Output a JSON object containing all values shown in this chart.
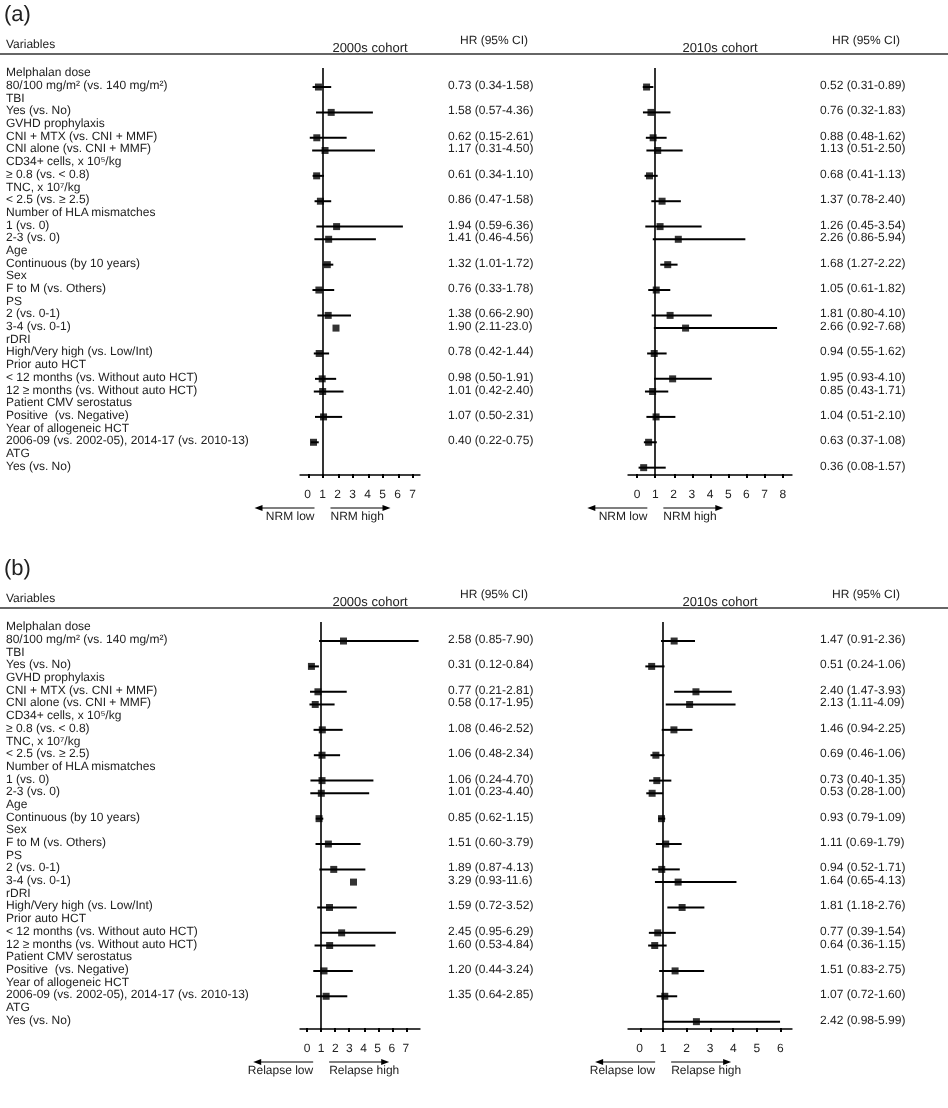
{
  "chart_data": [
    {
      "type": "scatter",
      "orientation": "horizontal",
      "title": "2000s cohort",
      "ylabel": "Variables",
      "annotations": [
        "(a)",
        "HR (95% CI)",
        "NRM low",
        "NRM high"
      ],
      "color": "#000000",
      "marker": "square",
      "xlim": [
        -0.5,
        7.5
      ],
      "xticks": [
        0,
        1,
        2,
        3,
        4,
        5,
        6,
        7
      ],
      "ref_lines": [
        {
          "axis": "x",
          "value": 1
        }
      ],
      "categories": [
        "Melphalan dose",
        "80/100 mg/m² (vs. 140 mg/m²)",
        "TBI",
        "Yes (vs. No)",
        "GVHD prophylaxis",
        "CNI + MTX (vs. CNI + MMF)",
        "CNI alone (vs. CNI + MMF)",
        "CD34+ cells, x 10⁵/kg",
        "≥ 0.8 (vs. < 0.8)",
        "TNC, x 10⁷/kg",
        "< 2.5 (vs. ≥ 2.5)",
        "Number of HLA mismatches",
        "1 (vs. 0)",
        "2-3 (vs. 0)",
        "Age",
        "Continuous (by 10 years)",
        "Sex",
        "F to M (vs. Others)",
        "PS",
        "2 (vs. 0-1)",
        "3-4 (vs. 0-1)",
        "rDRI",
        "High/Very high (vs. Low/Int)",
        "Prior auto HCT",
        "< 12 months (vs. Without auto HCT)",
        "12 ≥ months (vs. Without auto HCT)",
        "Patient CMV serostatus",
        "Positive  (vs. Negative)",
        "Year of allogeneic HCT",
        "2006-09 (vs. 2002-05), 2014-17 (vs. 2010-13)",
        "ATG",
        "Yes (vs. No)"
      ],
      "values": [
        null,
        0.73,
        null,
        1.58,
        null,
        0.62,
        1.17,
        null,
        0.61,
        null,
        0.86,
        null,
        1.94,
        1.41,
        null,
        1.32,
        null,
        0.76,
        null,
        1.38,
        1.9,
        null,
        0.78,
        null,
        0.98,
        1.01,
        null,
        1.07,
        null,
        0.4,
        null,
        null
      ],
      "errors": [
        null,
        [
          0.34,
          1.58
        ],
        null,
        [
          0.57,
          4.36
        ],
        null,
        [
          0.15,
          2.61
        ],
        [
          0.31,
          4.5
        ],
        null,
        [
          0.34,
          1.1
        ],
        null,
        [
          0.47,
          1.58
        ],
        null,
        [
          0.59,
          6.36
        ],
        [
          0.46,
          4.56
        ],
        null,
        [
          1.01,
          1.72
        ],
        null,
        [
          0.33,
          1.78
        ],
        null,
        [
          0.66,
          2.9
        ],
        null,
        null,
        [
          0.42,
          1.44
        ],
        null,
        [
          0.5,
          1.91
        ],
        [
          0.42,
          2.4
        ],
        null,
        [
          0.5,
          2.31
        ],
        null,
        [
          0.22,
          0.75
        ],
        null,
        null
      ],
      "value_labels": [
        null,
        "0.73 (0.34-1.58)",
        null,
        "1.58 (0.57-4.36)",
        null,
        "0.62 (0.15-2.61)",
        "1.17 (0.31-4.50)",
        null,
        "0.61 (0.34-1.10)",
        null,
        "0.86 (0.47-1.58)",
        null,
        "1.94 (0.59-6.36)",
        "1.41 (0.46-4.56)",
        null,
        "1.32 (1.01-1.72)",
        null,
        "0.76 (0.33-1.78)",
        null,
        "1.38 (0.66-2.90)",
        "1.90 (2.11-23.0)",
        null,
        "0.78 (0.42-1.44)",
        null,
        "0.98 (0.50-1.91)",
        "1.01 (0.42-2.40)",
        null,
        "1.07 (0.50-2.31)",
        null,
        "0.40 (0.22-0.75)",
        null,
        null
      ]
    },
    {
      "type": "scatter",
      "orientation": "horizontal",
      "title": "2010s cohort",
      "annotations": [
        "HR (95% CI)",
        "NRM low",
        "NRM high"
      ],
      "color": "#000000",
      "marker": "square",
      "xlim": [
        -0.5,
        8.5
      ],
      "xticks": [
        0,
        1,
        2,
        3,
        4,
        5,
        6,
        7,
        8
      ],
      "ref_lines": [
        {
          "axis": "x",
          "value": 1
        }
      ],
      "tick_labels": "x",
      "categories": [
        null,
        null,
        null,
        null,
        null,
        null,
        null,
        null,
        null,
        null,
        null,
        null,
        null,
        null,
        null,
        null,
        null,
        null,
        null,
        null,
        null,
        null,
        null,
        null,
        null,
        null,
        null,
        null,
        null,
        null,
        null,
        null
      ],
      "values": [
        null,
        0.52,
        null,
        0.76,
        null,
        0.88,
        1.13,
        null,
        0.68,
        null,
        1.37,
        null,
        1.26,
        2.26,
        null,
        1.68,
        null,
        1.05,
        null,
        1.81,
        2.66,
        null,
        0.94,
        null,
        1.95,
        0.85,
        null,
        1.04,
        null,
        0.63,
        null,
        0.36
      ],
      "errors": [
        null,
        [
          0.31,
          0.89
        ],
        null,
        [
          0.32,
          1.83
        ],
        null,
        [
          0.48,
          1.62
        ],
        [
          0.51,
          2.5
        ],
        null,
        [
          0.41,
          1.13
        ],
        null,
        [
          0.78,
          2.4
        ],
        null,
        [
          0.45,
          3.54
        ],
        [
          0.86,
          5.94
        ],
        null,
        [
          1.27,
          2.22
        ],
        null,
        [
          0.61,
          1.82
        ],
        null,
        [
          0.8,
          4.1
        ],
        [
          0.92,
          7.68
        ],
        null,
        [
          0.55,
          1.62
        ],
        null,
        [
          0.93,
          4.1
        ],
        [
          0.43,
          1.71
        ],
        null,
        [
          0.51,
          2.1
        ],
        null,
        [
          0.37,
          1.08
        ],
        null,
        [
          0.08,
          1.57
        ]
      ],
      "value_labels": [
        null,
        "0.52 (0.31-0.89)",
        null,
        "0.76 (0.32-1.83)",
        null,
        "0.88 (0.48-1.62)",
        "1.13 (0.51-2.50)",
        null,
        "0.68 (0.41-1.13)",
        null,
        "1.37 (0.78-2.40)",
        null,
        "1.26 (0.45-3.54)",
        "2.26 (0.86-5.94)",
        null,
        "1.68 (1.27-2.22)",
        null,
        "1.05 (0.61-1.82)",
        null,
        "1.81 (0.80-4.10)",
        "2.66 (0.92-7.68)",
        null,
        "0.94 (0.55-1.62)",
        null,
        "1.95 (0.93-4.10)",
        "0.85 (0.43-1.71)",
        null,
        "1.04 (0.51-2.10)",
        null,
        "0.63 (0.37-1.08)",
        null,
        "0.36 (0.08-1.57)"
      ]
    },
    {
      "type": "scatter",
      "orientation": "horizontal",
      "title": "2000s cohort",
      "ylabel": "Variables",
      "annotations": [
        "(b)",
        "HR (95% CI)",
        "Relapse low",
        "Relapse high"
      ],
      "color": "#000000",
      "marker": "square",
      "xlim": [
        -0.5,
        8
      ],
      "xticks": [
        0,
        1,
        2,
        3,
        4,
        5,
        6,
        7
      ],
      "ref_lines": [
        {
          "axis": "x",
          "value": 1
        }
      ],
      "categories": [
        "Melphalan dose",
        "80/100 mg/m² (vs. 140 mg/m²)",
        "TBI",
        "Yes (vs. No)",
        "GVHD prophylaxis",
        "CNI + MTX (vs. CNI + MMF)",
        "CNI alone (vs. CNI + MMF)",
        "CD34+ cells, x 10⁵/kg",
        "≥ 0.8 (vs. < 0.8)",
        "TNC, x 10⁷/kg",
        "< 2.5 (vs. ≥ 2.5)",
        "Number of HLA mismatches",
        "1 (vs. 0)",
        "2-3 (vs. 0)",
        "Age",
        "Continuous (by 10 years)",
        "Sex",
        "F to M (vs. Others)",
        "PS",
        "2 (vs. 0-1)",
        "3-4 (vs. 0-1)",
        "rDRI",
        "High/Very high (vs. Low/Int)",
        "Prior auto HCT",
        "< 12 months (vs. Without auto HCT)",
        "12 ≥ months (vs. Without auto HCT)",
        "Patient CMV serostatus",
        "Positive  (vs. Negative)",
        "Year of allogeneic HCT",
        "2006-09 (vs. 2002-05), 2014-17 (vs. 2010-13)",
        "ATG",
        "Yes (vs. No)"
      ],
      "values": [
        null,
        2.58,
        null,
        0.31,
        null,
        0.77,
        0.58,
        null,
        1.08,
        null,
        1.06,
        null,
        1.06,
        1.01,
        null,
        0.85,
        null,
        1.51,
        null,
        1.89,
        3.29,
        null,
        1.59,
        null,
        2.45,
        1.6,
        null,
        1.2,
        null,
        1.35,
        null,
        null
      ],
      "errors": [
        null,
        [
          0.85,
          7.9
        ],
        null,
        [
          0.12,
          0.84
        ],
        null,
        [
          0.21,
          2.81
        ],
        [
          0.17,
          1.95
        ],
        null,
        [
          0.46,
          2.52
        ],
        null,
        [
          0.48,
          2.34
        ],
        null,
        [
          0.24,
          4.7
        ],
        [
          0.23,
          4.4
        ],
        null,
        [
          0.62,
          1.15
        ],
        null,
        [
          0.6,
          3.79
        ],
        null,
        [
          0.87,
          4.13
        ],
        null,
        null,
        [
          0.72,
          3.52
        ],
        null,
        [
          0.95,
          6.29
        ],
        [
          0.53,
          4.84
        ],
        null,
        [
          0.44,
          3.24
        ],
        null,
        [
          0.64,
          2.85
        ],
        null,
        null
      ],
      "value_labels": [
        null,
        "2.58 (0.85-7.90)",
        null,
        "0.31 (0.12-0.84)",
        null,
        "0.77 (0.21-2.81)",
        "0.58 (0.17-1.95)",
        null,
        "1.08 (0.46-2.52)",
        null,
        "1.06 (0.48-2.34)",
        null,
        "1.06 (0.24-4.70)",
        "1.01 (0.23-4.40)",
        null,
        "0.85 (0.62-1.15)",
        null,
        "1.51 (0.60-3.79)",
        null,
        "1.89 (0.87-4.13)",
        "3.29 (0.93-11.6)",
        null,
        "1.59 (0.72-3.52)",
        null,
        "2.45 (0.95-6.29)",
        "1.60 (0.53-4.84)",
        null,
        "1.20 (0.44-3.24)",
        null,
        "1.35 (0.64-2.85)",
        null,
        null
      ]
    },
    {
      "type": "scatter",
      "orientation": "horizontal",
      "title": "2010s cohort",
      "annotations": [
        "HR (95% CI)",
        "Relapse low",
        "Relapse high"
      ],
      "color": "#000000",
      "marker": "square",
      "xlim": [
        -0.5,
        6.5
      ],
      "xticks": [
        0,
        1,
        2,
        3,
        4,
        5,
        6
      ],
      "ref_lines": [
        {
          "axis": "x",
          "value": 1
        }
      ],
      "tick_labels": "x",
      "categories": [
        null,
        null,
        null,
        null,
        null,
        null,
        null,
        null,
        null,
        null,
        null,
        null,
        null,
        null,
        null,
        null,
        null,
        null,
        null,
        null,
        null,
        null,
        null,
        null,
        null,
        null,
        null,
        null,
        null,
        null,
        null,
        null
      ],
      "values": [
        null,
        1.47,
        null,
        0.51,
        null,
        2.4,
        2.13,
        null,
        1.46,
        null,
        0.69,
        null,
        0.73,
        0.53,
        null,
        0.93,
        null,
        1.11,
        null,
        0.94,
        1.64,
        null,
        1.81,
        null,
        0.77,
        0.64,
        null,
        1.51,
        null,
        1.07,
        null,
        2.42
      ],
      "errors": [
        null,
        [
          0.91,
          2.36
        ],
        null,
        [
          0.24,
          1.06
        ],
        null,
        [
          1.47,
          3.93
        ],
        [
          1.11,
          4.09
        ],
        null,
        [
          0.94,
          2.25
        ],
        null,
        [
          0.46,
          1.06
        ],
        null,
        [
          0.4,
          1.35
        ],
        [
          0.28,
          1.0
        ],
        null,
        [
          0.79,
          1.09
        ],
        null,
        [
          0.69,
          1.79
        ],
        null,
        [
          0.52,
          1.71
        ],
        [
          0.65,
          4.13
        ],
        null,
        [
          1.18,
          2.76
        ],
        null,
        [
          0.39,
          1.54
        ],
        [
          0.36,
          1.15
        ],
        null,
        [
          0.83,
          2.75
        ],
        null,
        [
          0.72,
          1.6
        ],
        null,
        [
          0.98,
          5.99
        ]
      ],
      "value_labels": [
        null,
        "1.47 (0.91-2.36)",
        null,
        "0.51 (0.24-1.06)",
        null,
        "2.40 (1.47-3.93)",
        "2.13 (1.11-4.09)",
        null,
        "1.46 (0.94-2.25)",
        null,
        "0.69 (0.46-1.06)",
        null,
        "0.73 (0.40-1.35)",
        "0.53 (0.28-1.00)",
        null,
        "0.93 (0.79-1.09)",
        null,
        "1.11 (0.69-1.79)",
        null,
        "0.94 (0.52-1.71)",
        "1.64 (0.65-4.13)",
        null,
        "1.81 (1.18-2.76)",
        null,
        "0.77 (0.39-1.54)",
        "0.64 (0.36-1.15)",
        null,
        "1.51 (0.83-2.75)",
        null,
        "1.07 (0.72-1.60)",
        null,
        "2.42 (0.98-5.99)"
      ]
    }
  ]
}
